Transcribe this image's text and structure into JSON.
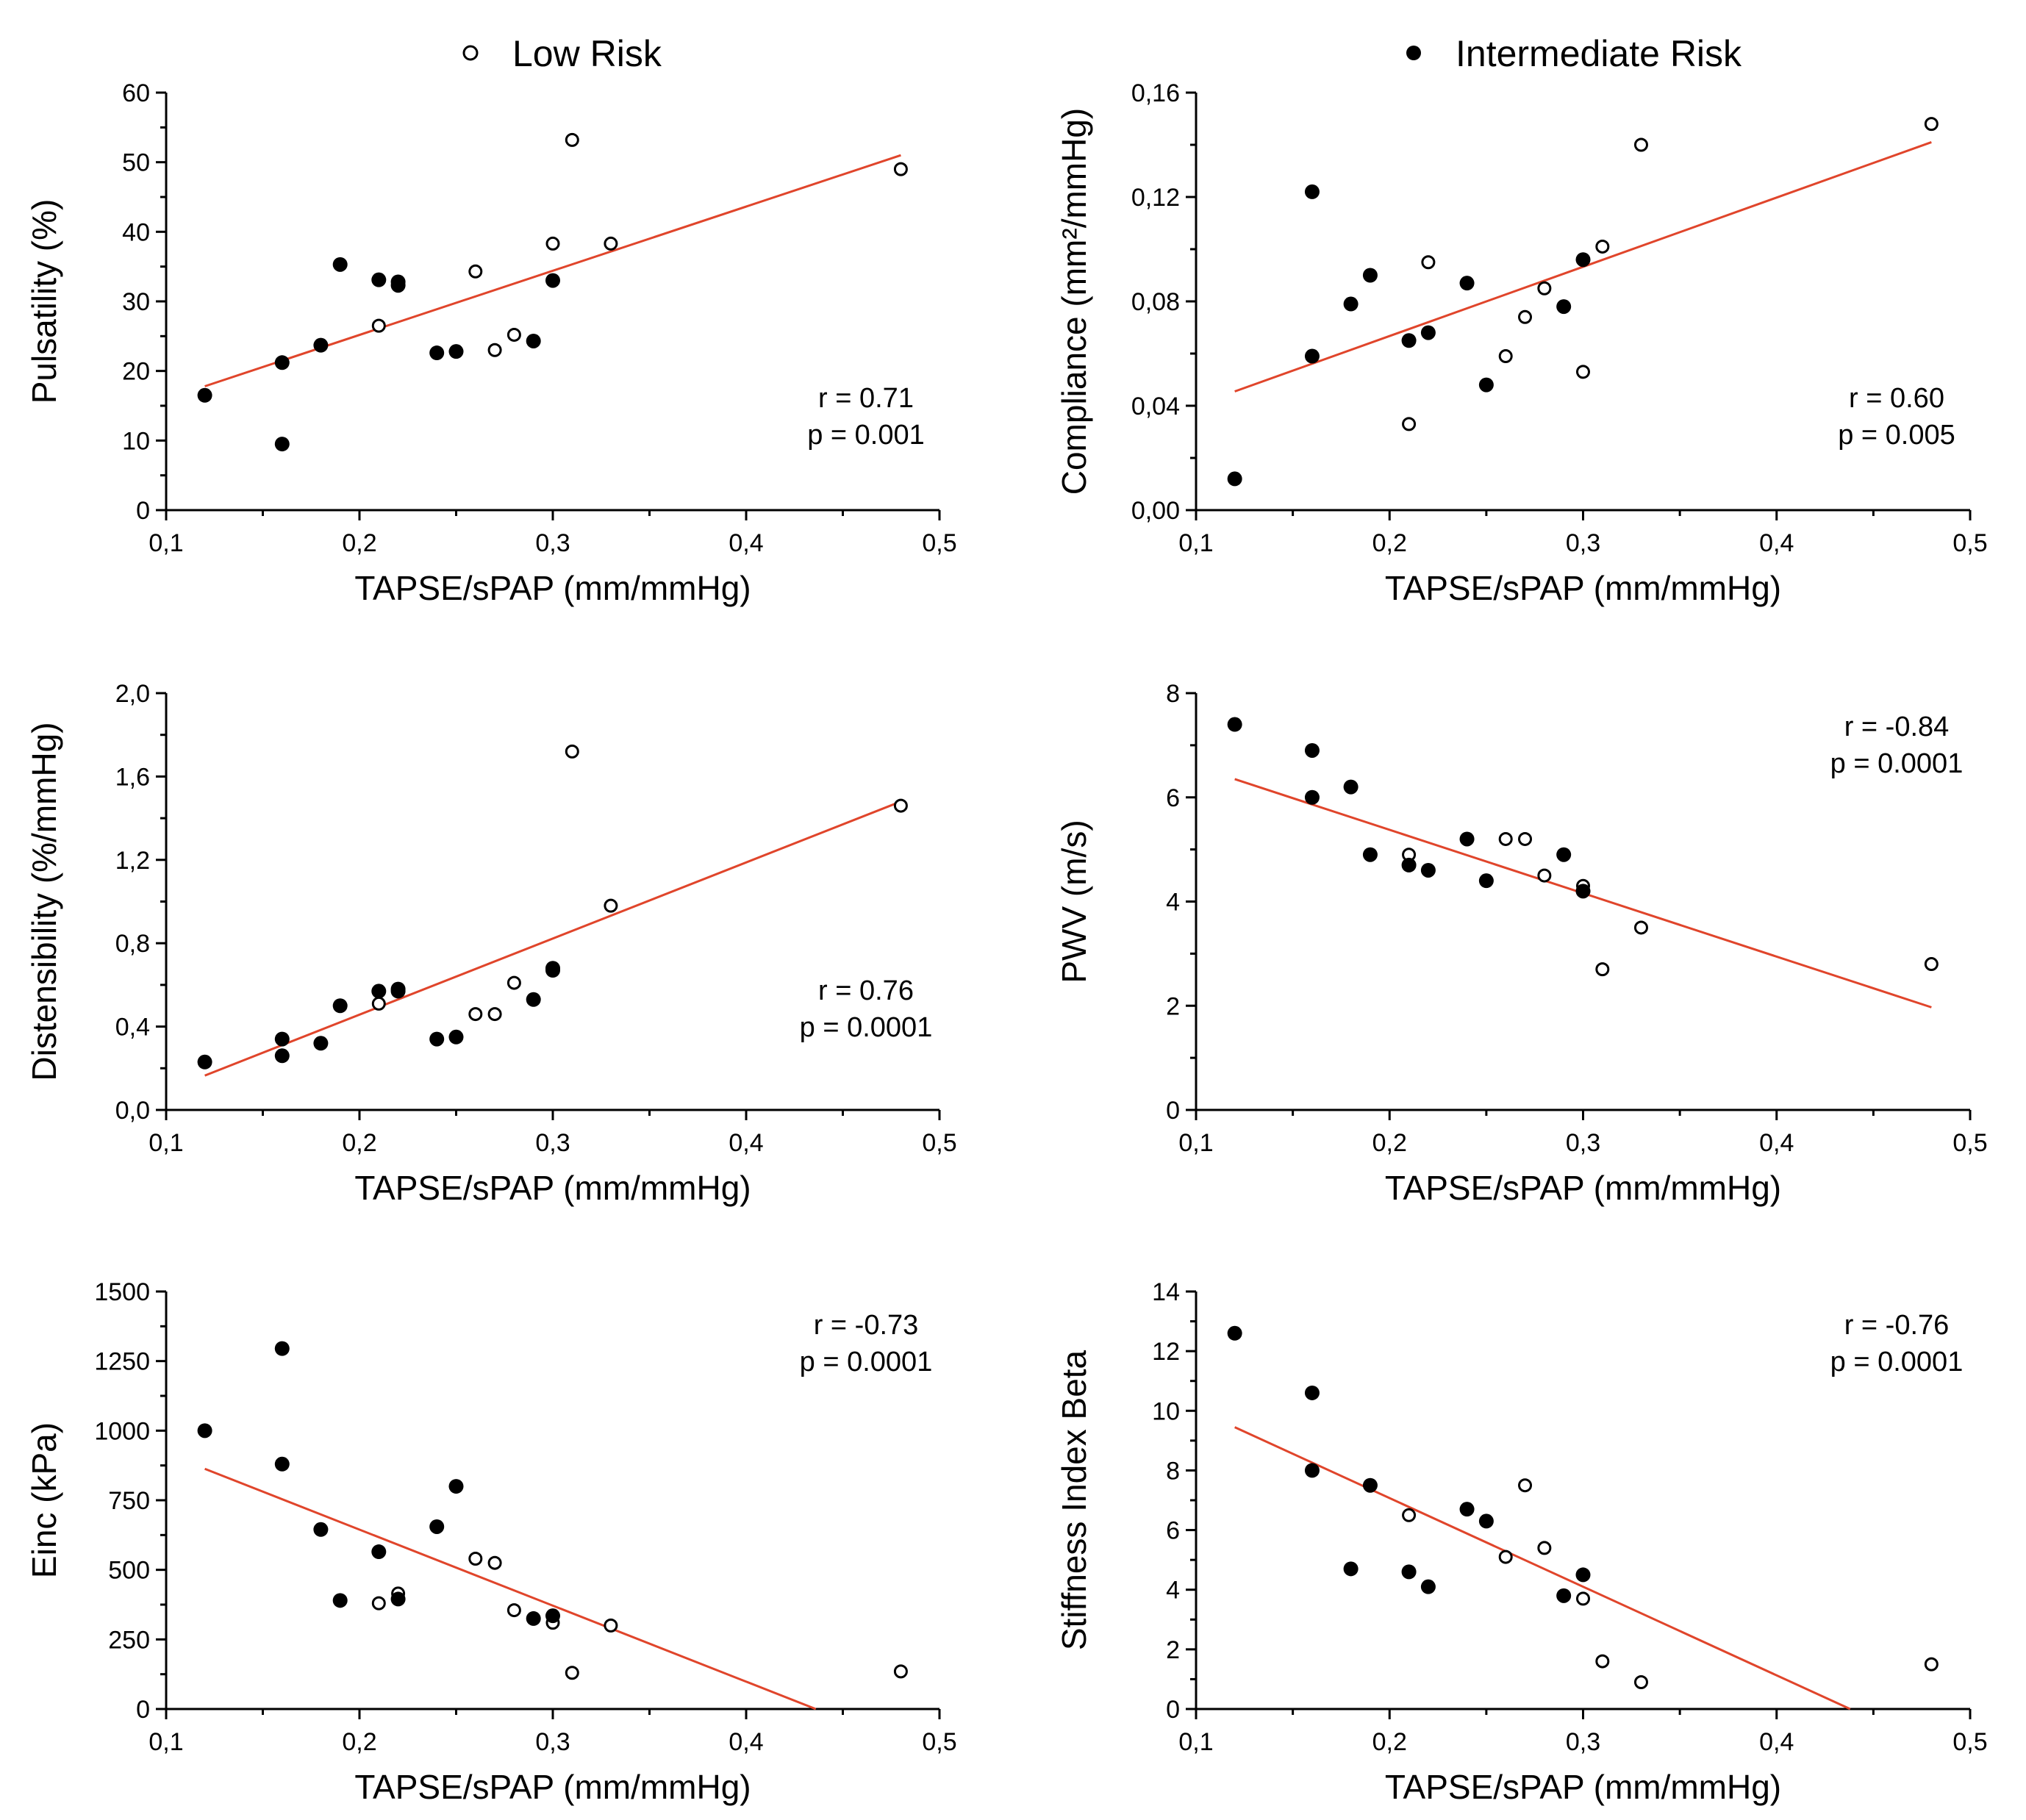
{
  "legend": {
    "low_risk": "Low Risk",
    "intermediate_risk": "Intermediate Risk"
  },
  "colors": {
    "fit_line": "#e0452b",
    "marker": "#000000"
  },
  "chart_data": [
    {
      "type": "scatter",
      "id": "pulsatility",
      "xlabel": "TAPSE/sPAP (mm/mmHg)",
      "ylabel": "Pulsatility (%)",
      "xlim": [
        0.1,
        0.5
      ],
      "ylim": [
        0,
        60
      ],
      "xticks": [
        0.1,
        0.2,
        0.3,
        0.4,
        0.5
      ],
      "xtick_labels": [
        "0,1",
        "0,2",
        "0,3",
        "0,4",
        "0,5"
      ],
      "yticks": [
        0,
        10,
        20,
        30,
        40,
        50,
        60
      ],
      "ytick_labels": [
        "0",
        "10",
        "20",
        "30",
        "40",
        "50",
        "60"
      ],
      "stats": [
        "r = 0.71",
        "p = 0.001"
      ],
      "stats_position": "bottom-right",
      "fit": {
        "x": [
          0.12,
          0.48
        ],
        "y": [
          17.8,
          51.0
        ]
      },
      "series": [
        {
          "name": "Low Risk",
          "marker": "open",
          "points": [
            [
              0.21,
              26.5
            ],
            [
              0.26,
              34.3
            ],
            [
              0.27,
              23.0
            ],
            [
              0.28,
              25.2
            ],
            [
              0.3,
              38.3
            ],
            [
              0.31,
              53.2
            ],
            [
              0.33,
              38.3
            ],
            [
              0.48,
              49.0
            ]
          ]
        },
        {
          "name": "Intermediate Risk",
          "marker": "filled",
          "points": [
            [
              0.12,
              16.5
            ],
            [
              0.16,
              21.2
            ],
            [
              0.16,
              9.5
            ],
            [
              0.18,
              23.7
            ],
            [
              0.19,
              35.3
            ],
            [
              0.21,
              33.1
            ],
            [
              0.22,
              32.8
            ],
            [
              0.22,
              32.3
            ],
            [
              0.24,
              22.6
            ],
            [
              0.25,
              22.8
            ],
            [
              0.29,
              24.3
            ],
            [
              0.3,
              33.0
            ]
          ]
        }
      ]
    },
    {
      "type": "scatter",
      "id": "compliance",
      "xlabel": "TAPSE/sPAP (mm/mmHg)",
      "ylabel": "Compliance (mm²/mmHg)",
      "xlim": [
        0.1,
        0.5
      ],
      "ylim": [
        0,
        0.16
      ],
      "xticks": [
        0.1,
        0.2,
        0.3,
        0.4,
        0.5
      ],
      "xtick_labels": [
        "0,1",
        "0,2",
        "0,3",
        "0,4",
        "0,5"
      ],
      "yticks": [
        0,
        0.04,
        0.08,
        0.12,
        0.16
      ],
      "ytick_labels": [
        "0,00",
        "0,04",
        "0,08",
        "0,12",
        "0,16"
      ],
      "stats": [
        "r = 0.60",
        "p = 0.005"
      ],
      "stats_position": "bottom-right",
      "fit": {
        "x": [
          0.12,
          0.48
        ],
        "y": [
          0.0455,
          0.141
        ]
      },
      "series": [
        {
          "name": "Low Risk",
          "marker": "open",
          "points": [
            [
              0.21,
              0.033
            ],
            [
              0.22,
              0.095
            ],
            [
              0.26,
              0.059
            ],
            [
              0.27,
              0.074
            ],
            [
              0.28,
              0.085
            ],
            [
              0.3,
              0.053
            ],
            [
              0.31,
              0.101
            ],
            [
              0.33,
              0.14
            ],
            [
              0.48,
              0.148
            ]
          ]
        },
        {
          "name": "Intermediate Risk",
          "marker": "filled",
          "points": [
            [
              0.12,
              0.012
            ],
            [
              0.16,
              0.122
            ],
            [
              0.16,
              0.059
            ],
            [
              0.18,
              0.079
            ],
            [
              0.19,
              0.09
            ],
            [
              0.21,
              0.065
            ],
            [
              0.22,
              0.068
            ],
            [
              0.24,
              0.087
            ],
            [
              0.25,
              0.048
            ],
            [
              0.29,
              0.078
            ],
            [
              0.3,
              0.096
            ]
          ]
        }
      ]
    },
    {
      "type": "scatter",
      "id": "distensibility",
      "xlabel": "TAPSE/sPAP (mm/mmHg)",
      "ylabel": "Distensibility (%/mmHg)",
      "xlim": [
        0.1,
        0.5
      ],
      "ylim": [
        0,
        2.0
      ],
      "xticks": [
        0.1,
        0.2,
        0.3,
        0.4,
        0.5
      ],
      "xtick_labels": [
        "0,1",
        "0,2",
        "0,3",
        "0,4",
        "0,5"
      ],
      "yticks": [
        0,
        0.4,
        0.8,
        1.2,
        1.6,
        2.0
      ],
      "ytick_labels": [
        "0,0",
        "0,4",
        "0,8",
        "1,2",
        "1,6",
        "2,0"
      ],
      "stats": [
        "r = 0.76",
        "p = 0.0001"
      ],
      "stats_position": "middle-right",
      "fit": {
        "x": [
          0.12,
          0.48
        ],
        "y": [
          0.165,
          1.48
        ]
      },
      "series": [
        {
          "name": "Low Risk",
          "marker": "open",
          "points": [
            [
              0.21,
              0.51
            ],
            [
              0.26,
              0.46
            ],
            [
              0.27,
              0.46
            ],
            [
              0.28,
              0.61
            ],
            [
              0.31,
              1.72
            ],
            [
              0.33,
              0.98
            ],
            [
              0.48,
              1.46
            ]
          ]
        },
        {
          "name": "Intermediate Risk",
          "marker": "filled",
          "points": [
            [
              0.12,
              0.23
            ],
            [
              0.16,
              0.34
            ],
            [
              0.16,
              0.26
            ],
            [
              0.18,
              0.32
            ],
            [
              0.19,
              0.5
            ],
            [
              0.21,
              0.57
            ],
            [
              0.22,
              0.58
            ],
            [
              0.22,
              0.57
            ],
            [
              0.24,
              0.34
            ],
            [
              0.25,
              0.35
            ],
            [
              0.29,
              0.53
            ],
            [
              0.3,
              0.68
            ],
            [
              0.3,
              0.67
            ]
          ]
        }
      ]
    },
    {
      "type": "scatter",
      "id": "pwv",
      "xlabel": "TAPSE/sPAP (mm/mmHg)",
      "ylabel": "PWV (m/s)",
      "xlim": [
        0.1,
        0.5
      ],
      "ylim": [
        0,
        8
      ],
      "xticks": [
        0.1,
        0.2,
        0.3,
        0.4,
        0.5
      ],
      "xtick_labels": [
        "0,1",
        "0,2",
        "0,3",
        "0,4",
        "0,5"
      ],
      "yticks": [
        0,
        2,
        4,
        6,
        8
      ],
      "ytick_labels": [
        "0",
        "2",
        "4",
        "6",
        "8"
      ],
      "stats": [
        "r = -0.84",
        "p = 0.0001"
      ],
      "stats_position": "top-right",
      "fit": {
        "x": [
          0.12,
          0.48
        ],
        "y": [
          6.35,
          1.97
        ]
      },
      "series": [
        {
          "name": "Low Risk",
          "marker": "open",
          "points": [
            [
              0.21,
              4.9
            ],
            [
              0.26,
              5.2
            ],
            [
              0.27,
              5.2
            ],
            [
              0.28,
              4.5
            ],
            [
              0.3,
              4.3
            ],
            [
              0.31,
              2.7
            ],
            [
              0.33,
              3.5
            ],
            [
              0.48,
              2.8
            ]
          ]
        },
        {
          "name": "Intermediate Risk",
          "marker": "filled",
          "points": [
            [
              0.12,
              7.4
            ],
            [
              0.16,
              6.9
            ],
            [
              0.16,
              6.0
            ],
            [
              0.18,
              6.2
            ],
            [
              0.19,
              4.9
            ],
            [
              0.21,
              4.7
            ],
            [
              0.22,
              4.6
            ],
            [
              0.24,
              5.2
            ],
            [
              0.25,
              4.4
            ],
            [
              0.29,
              4.9
            ],
            [
              0.3,
              4.2
            ]
          ]
        }
      ]
    },
    {
      "type": "scatter",
      "id": "einc",
      "xlabel": "TAPSE/sPAP (mm/mmHg)",
      "ylabel": "Einc (kPa)",
      "xlim": [
        0.1,
        0.5
      ],
      "ylim": [
        0,
        1500
      ],
      "xticks": [
        0.1,
        0.2,
        0.3,
        0.4,
        0.5
      ],
      "xtick_labels": [
        "0,1",
        "0,2",
        "0,3",
        "0,4",
        "0,5"
      ],
      "yticks": [
        0,
        250,
        500,
        750,
        1000,
        1250,
        1500
      ],
      "ytick_labels": [
        "0",
        "250",
        "500",
        "750",
        "1000",
        "1250",
        "1500"
      ],
      "stats": [
        "r = -0.73",
        "p = 0.0001"
      ],
      "stats_position": "top-right",
      "fit": {
        "x": [
          0.12,
          0.436
        ],
        "y": [
          863,
          0
        ]
      },
      "series": [
        {
          "name": "Low Risk",
          "marker": "open",
          "points": [
            [
              0.21,
              380
            ],
            [
              0.22,
              415
            ],
            [
              0.26,
              540
            ],
            [
              0.27,
              525
            ],
            [
              0.28,
              355
            ],
            [
              0.3,
              310
            ],
            [
              0.31,
              130
            ],
            [
              0.33,
              300
            ],
            [
              0.48,
              135
            ]
          ]
        },
        {
          "name": "Intermediate Risk",
          "marker": "filled",
          "points": [
            [
              0.12,
              1000
            ],
            [
              0.16,
              1295
            ],
            [
              0.16,
              880
            ],
            [
              0.18,
              645
            ],
            [
              0.19,
              390
            ],
            [
              0.21,
              565
            ],
            [
              0.22,
              395
            ],
            [
              0.24,
              655
            ],
            [
              0.25,
              800
            ],
            [
              0.29,
              325
            ],
            [
              0.3,
              335
            ]
          ]
        }
      ]
    },
    {
      "type": "scatter",
      "id": "stiffness",
      "xlabel": "TAPSE/sPAP (mm/mmHg)",
      "ylabel": "Stiffness Index Beta",
      "xlim": [
        0.1,
        0.5
      ],
      "ylim": [
        0,
        14
      ],
      "xticks": [
        0.1,
        0.2,
        0.3,
        0.4,
        0.5
      ],
      "xtick_labels": [
        "0,1",
        "0,2",
        "0,3",
        "0,4",
        "0,5"
      ],
      "yticks": [
        0,
        2,
        4,
        6,
        8,
        10,
        12,
        14
      ],
      "ytick_labels": [
        "0",
        "2",
        "4",
        "6",
        "8",
        "10",
        "12",
        "14"
      ],
      "stats": [
        "r = -0.76",
        "p = 0.0001"
      ],
      "stats_position": "top-right",
      "fit": {
        "x": [
          0.12,
          0.438
        ],
        "y": [
          9.45,
          0
        ]
      },
      "series": [
        {
          "name": "Low Risk",
          "marker": "open",
          "points": [
            [
              0.21,
              6.5
            ],
            [
              0.26,
              5.1
            ],
            [
              0.27,
              7.5
            ],
            [
              0.28,
              5.4
            ],
            [
              0.3,
              3.7
            ],
            [
              0.31,
              1.6
            ],
            [
              0.33,
              0.9
            ],
            [
              0.48,
              1.5
            ]
          ]
        },
        {
          "name": "Intermediate Risk",
          "marker": "filled",
          "points": [
            [
              0.12,
              12.6
            ],
            [
              0.16,
              10.6
            ],
            [
              0.16,
              8.0
            ],
            [
              0.18,
              4.7
            ],
            [
              0.19,
              7.5
            ],
            [
              0.21,
              4.6
            ],
            [
              0.22,
              4.1
            ],
            [
              0.24,
              6.7
            ],
            [
              0.25,
              6.3
            ],
            [
              0.29,
              3.8
            ],
            [
              0.3,
              4.5
            ]
          ]
        }
      ]
    }
  ]
}
